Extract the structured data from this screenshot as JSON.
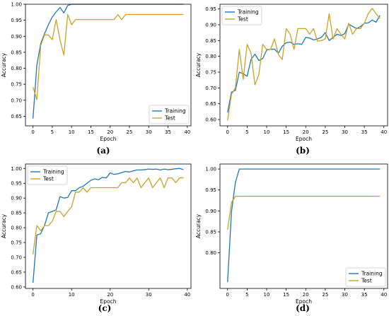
{
  "colors": {
    "training": "#1f77b4",
    "test": "#c9a227",
    "axis": "#000000"
  },
  "chart_data": [
    {
      "type": "line",
      "caption": "(a)",
      "xlabel": "Epoch",
      "ylabel": "Accuracy",
      "xlim": [
        -1.95,
        40.95
      ],
      "ylim": [
        0.62,
        1.0
      ],
      "xticks": [
        0,
        5,
        10,
        15,
        20,
        25,
        30,
        35,
        40
      ],
      "yticks": [
        0.65,
        0.7,
        0.75,
        0.8,
        0.85,
        0.9,
        0.95,
        1.0
      ],
      "ytick_labels": [
        "0.65",
        "0.70",
        "0.75",
        "0.80",
        "0.85",
        "0.90",
        "0.95",
        "1.00"
      ],
      "legend_position": "lower-right",
      "x": [
        0,
        1,
        2,
        3,
        4,
        5,
        6,
        7,
        8,
        9,
        10,
        11,
        12,
        13,
        14,
        15,
        16,
        17,
        18,
        19,
        20,
        21,
        22,
        23,
        24,
        25,
        26,
        27,
        28,
        29,
        30,
        31,
        32,
        33,
        34,
        35,
        36,
        37,
        38,
        39
      ],
      "series": [
        {
          "name": "Training",
          "values": [
            0.643,
            0.81,
            0.877,
            0.908,
            0.936,
            0.96,
            0.976,
            0.99,
            0.973,
            0.996,
            1,
            1,
            1,
            1,
            1,
            1,
            1,
            1,
            1,
            1,
            1,
            1,
            1,
            1,
            1,
            1,
            1,
            1,
            1,
            1,
            1,
            1,
            1,
            1,
            1,
            1,
            1,
            1,
            1,
            1
          ]
        },
        {
          "name": "Test",
          "values": [
            0.741,
            0.702,
            0.871,
            0.904,
            0.904,
            0.889,
            0.952,
            0.889,
            0.841,
            0.968,
            0.936,
            0.952,
            0.952,
            0.952,
            0.952,
            0.952,
            0.952,
            0.952,
            0.952,
            0.952,
            0.952,
            0.952,
            0.968,
            0.952,
            0.968,
            0.968,
            0.968,
            0.968,
            0.968,
            0.968,
            0.968,
            0.968,
            0.968,
            0.968,
            0.968,
            0.968,
            0.968,
            0.968,
            0.968,
            0.968
          ]
        }
      ]
    },
    {
      "type": "line",
      "caption": "(b)",
      "xlabel": "Epoch",
      "ylabel": "Accuracy",
      "xlim": [
        -1.95,
        40.95
      ],
      "ylim": [
        0.58,
        0.965
      ],
      "xticks": [
        0,
        5,
        10,
        15,
        20,
        25,
        30,
        35,
        40
      ],
      "yticks": [
        0.6,
        0.65,
        0.7,
        0.75,
        0.8,
        0.85,
        0.9,
        0.95
      ],
      "ytick_labels": [
        "0.60",
        "0.65",
        "0.70",
        "0.75",
        "0.80",
        "0.85",
        "0.90",
        "0.95"
      ],
      "legend_position": "top-left",
      "x": [
        0,
        1,
        2,
        3,
        4,
        5,
        6,
        7,
        8,
        9,
        10,
        11,
        12,
        13,
        14,
        15,
        16,
        17,
        18,
        19,
        20,
        21,
        22,
        23,
        24,
        25,
        26,
        27,
        28,
        29,
        30,
        31,
        32,
        33,
        34,
        35,
        36,
        37,
        38,
        39
      ],
      "series": [
        {
          "name": "Training",
          "values": [
            0.622,
            0.687,
            0.692,
            0.75,
            0.745,
            0.737,
            0.79,
            0.807,
            0.787,
            0.793,
            0.82,
            0.822,
            0.823,
            0.81,
            0.832,
            0.843,
            0.845,
            0.838,
            0.84,
            0.838,
            0.86,
            0.858,
            0.852,
            0.855,
            0.86,
            0.875,
            0.85,
            0.86,
            0.87,
            0.866,
            0.872,
            0.902,
            0.895,
            0.888,
            0.894,
            0.905,
            0.906,
            0.915,
            0.908,
            0.93
          ]
        },
        {
          "name": "Test",
          "values": [
            0.597,
            0.68,
            0.7,
            0.822,
            0.727,
            0.838,
            0.81,
            0.71,
            0.742,
            0.838,
            0.822,
            0.822,
            0.855,
            0.806,
            0.79,
            0.888,
            0.87,
            0.822,
            0.888,
            0.888,
            0.888,
            0.87,
            0.888,
            0.848,
            0.85,
            0.855,
            0.935,
            0.855,
            0.888,
            0.87,
            0.855,
            0.905,
            0.87,
            0.888,
            0.888,
            0.905,
            0.935,
            0.952,
            0.935,
            0.92
          ]
        }
      ]
    },
    {
      "type": "line",
      "caption": "(c)",
      "xlabel": "Epoch",
      "ylabel": "Accuracy",
      "xlim": [
        -1.95,
        40.95
      ],
      "ylim": [
        0.595,
        1.015
      ],
      "xticks": [
        0,
        10,
        20,
        30,
        40
      ],
      "yticks": [
        0.6,
        0.65,
        0.7,
        0.75,
        0.8,
        0.85,
        0.9,
        0.95,
        1.0
      ],
      "ytick_labels": [
        "0.60",
        "0.65",
        "0.70",
        "0.75",
        "0.80",
        "0.85",
        "0.90",
        "0.95",
        "1.00"
      ],
      "legend_position": "top-left",
      "x": [
        0,
        1,
        2,
        3,
        4,
        5,
        6,
        7,
        8,
        9,
        10,
        11,
        12,
        13,
        14,
        15,
        16,
        17,
        18,
        19,
        20,
        21,
        22,
        23,
        24,
        25,
        26,
        27,
        28,
        29,
        30,
        31,
        32,
        33,
        34,
        35,
        36,
        37,
        38,
        39
      ],
      "series": [
        {
          "name": "Training",
          "values": [
            0.614,
            0.775,
            0.78,
            0.808,
            0.85,
            0.855,
            0.86,
            0.905,
            0.9,
            0.902,
            0.925,
            0.925,
            0.935,
            0.94,
            0.95,
            0.96,
            0.965,
            0.962,
            0.97,
            0.968,
            0.985,
            0.98,
            0.982,
            0.986,
            0.99,
            0.988,
            0.992,
            0.995,
            0.995,
            0.996,
            0.998,
            0.997,
            0.998,
            0.995,
            0.998,
            0.996,
            0.997,
            0.999,
            1.0,
            0.996
          ]
        },
        {
          "name": "Test",
          "values": [
            0.71,
            0.807,
            0.79,
            0.807,
            0.807,
            0.822,
            0.855,
            0.855,
            0.838,
            0.855,
            0.87,
            0.92,
            0.92,
            0.935,
            0.92,
            0.935,
            0.935,
            0.935,
            0.935,
            0.935,
            0.935,
            0.935,
            0.935,
            0.952,
            0.952,
            0.968,
            0.952,
            0.968,
            0.935,
            0.952,
            0.968,
            0.935,
            0.952,
            0.968,
            0.935,
            0.968,
            0.968,
            0.952,
            0.968,
            0.968
          ]
        }
      ]
    },
    {
      "type": "line",
      "caption": "(d)",
      "xlabel": "Epoch",
      "ylabel": "Accuracy",
      "xlim": [
        -1.95,
        40.95
      ],
      "ylim": [
        0.715,
        1.012
      ],
      "xticks": [
        0,
        5,
        10,
        15,
        20,
        25,
        30,
        35,
        40
      ],
      "yticks": [
        0.8,
        0.85,
        0.9,
        0.95,
        1.0
      ],
      "ytick_labels": [
        "0.80",
        "0.85",
        "0.90",
        "0.95",
        "1.00"
      ],
      "legend_position": "lower-right",
      "x": [
        0,
        1,
        2,
        3,
        4,
        5,
        6,
        7,
        8,
        9,
        10,
        11,
        12,
        13,
        14,
        15,
        16,
        17,
        18,
        19,
        20,
        21,
        22,
        23,
        24,
        25,
        26,
        27,
        28,
        29,
        30,
        31,
        32,
        33,
        34,
        35,
        36,
        37,
        38,
        39
      ],
      "series": [
        {
          "name": "Training",
          "values": [
            0.73,
            0.898,
            0.968,
            1,
            1,
            1,
            1,
            1,
            1,
            1,
            1,
            1,
            1,
            1,
            1,
            1,
            1,
            1,
            1,
            1,
            1,
            1,
            1,
            1,
            1,
            1,
            1,
            1,
            1,
            1,
            1,
            1,
            1,
            1,
            1,
            1,
            1,
            1,
            1,
            1
          ]
        },
        {
          "name": "Test",
          "values": [
            0.855,
            0.92,
            0.935,
            0.935,
            0.935,
            0.935,
            0.935,
            0.935,
            0.935,
            0.935,
            0.935,
            0.935,
            0.935,
            0.935,
            0.935,
            0.935,
            0.935,
            0.935,
            0.935,
            0.935,
            0.935,
            0.935,
            0.935,
            0.935,
            0.935,
            0.935,
            0.935,
            0.935,
            0.935,
            0.935,
            0.935,
            0.935,
            0.935,
            0.935,
            0.935,
            0.935,
            0.935,
            0.935,
            0.935,
            0.935
          ]
        }
      ]
    }
  ]
}
